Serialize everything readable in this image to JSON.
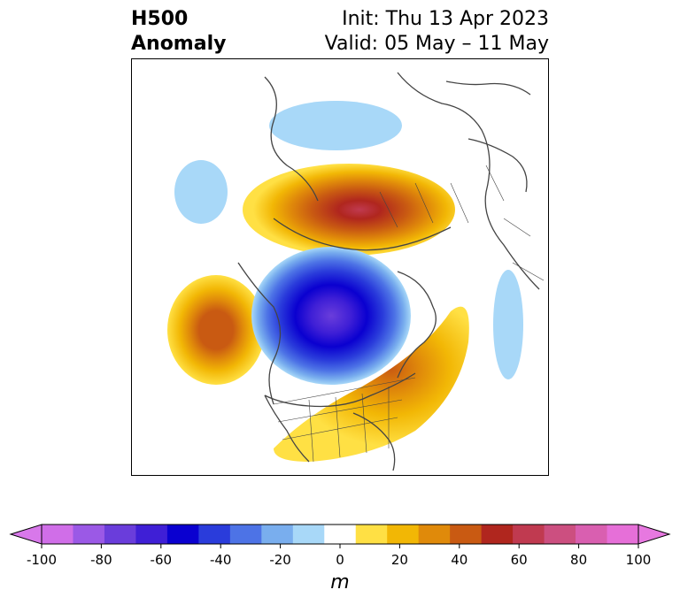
{
  "title": {
    "left_line1": "H500",
    "left_line2": "Anomaly",
    "right_line1": "Init: Thu 13 Apr 2023",
    "right_line2": "Valid: 05 May – 11 May"
  },
  "colorbar": {
    "unit_label": "m",
    "ticks": [
      "-100",
      "-80",
      "-60",
      "-40",
      "-20",
      "0",
      "20",
      "40",
      "60",
      "80",
      "100"
    ],
    "levels": [
      -100,
      -90,
      -80,
      -70,
      -60,
      -50,
      -40,
      -30,
      -20,
      -10,
      10,
      20,
      30,
      40,
      50,
      60,
      70,
      80,
      90,
      100
    ],
    "colors": [
      "#d06ee8",
      "#9b59e6",
      "#6a3ddb",
      "#3f1fd6",
      "#0a00d0",
      "#2a3cdb",
      "#4d73e6",
      "#79aeee",
      "#a8d8f8",
      "#ffffff",
      "#ffe044",
      "#f2b705",
      "#e08a0a",
      "#c95a12",
      "#b0261e",
      "#c03a50",
      "#cc4f80",
      "#d95fb0",
      "#e66fd8"
    ],
    "under_color": "#d878ea",
    "over_color": "#e778e0"
  }
}
